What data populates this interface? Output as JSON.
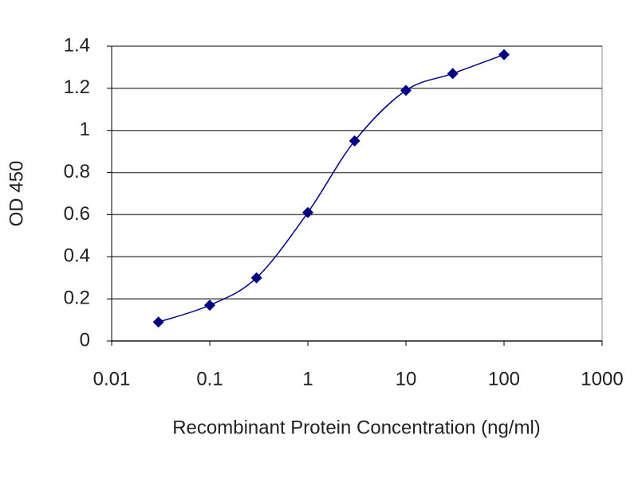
{
  "chart_data": {
    "type": "line",
    "x_label": "Recombinant Protein Concentration (ng/ml)",
    "y_label": "OD 450",
    "x": [
      0.03,
      0.1,
      0.3,
      1,
      3,
      10,
      30,
      100
    ],
    "series": [
      {
        "color": "#000080",
        "values": [
          0.09,
          0.17,
          0.3,
          0.61,
          0.95,
          1.19,
          1.27,
          1.36
        ]
      }
    ],
    "xlim": [
      0.01,
      1000
    ],
    "xticks": [
      0.01,
      0.1,
      1,
      10,
      100,
      1000
    ],
    "xlog": true,
    "ylim": [
      0,
      1.4
    ],
    "yticks": [
      0,
      0.2,
      0.4,
      0.6,
      0.8,
      1,
      1.2,
      1.4
    ],
    "grid": true,
    "smooth": true
  }
}
